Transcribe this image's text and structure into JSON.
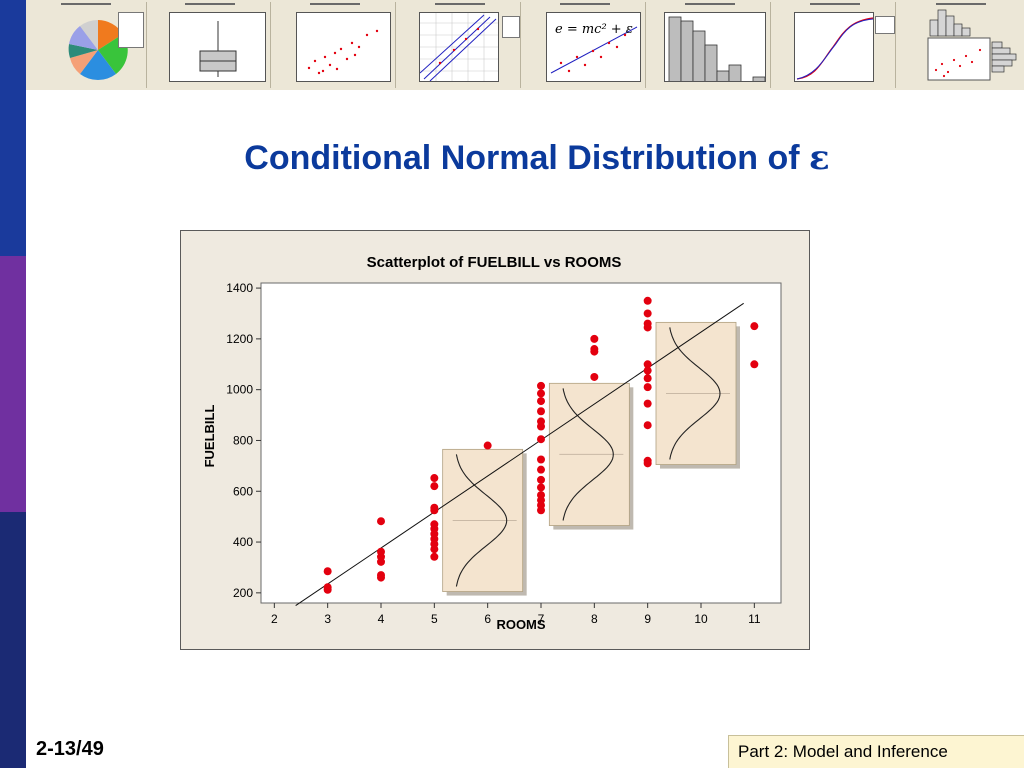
{
  "slide": {
    "title": "Conditional Normal Distribution of",
    "title_symbol": "ε",
    "page_number": "2-13/49",
    "footer_text": "Part 2: Model and Inference",
    "accent_color": "#0b3a9c",
    "sidebar_colors": [
      "#1a3a9c",
      "#7030a0",
      "#1b2a74"
    ]
  },
  "thumbnails": [
    {
      "kind": "pie"
    },
    {
      "kind": "boxplot"
    },
    {
      "kind": "scatter"
    },
    {
      "kind": "probability"
    },
    {
      "kind": "equation",
      "equation_text": "e = mc² + ε"
    },
    {
      "kind": "histogram"
    },
    {
      "kind": "cdf"
    },
    {
      "kind": "marginal"
    }
  ],
  "chart_data": {
    "type": "scatter",
    "title": "Scatterplot of FUELBILL vs ROOMS",
    "xlabel": "ROOMS",
    "ylabel": "FUELBILL",
    "xlim": [
      1.75,
      11.5
    ],
    "ylim": [
      160,
      1420
    ],
    "x_ticks": [
      2,
      3,
      4,
      5,
      6,
      7,
      8,
      9,
      10,
      11
    ],
    "y_ticks": [
      200,
      400,
      600,
      800,
      1000,
      1200,
      1400
    ],
    "grid": false,
    "point_color": "#e3000f",
    "points": [
      [
        3,
        285
      ],
      [
        3,
        222
      ],
      [
        3,
        212
      ],
      [
        4,
        482
      ],
      [
        4,
        362
      ],
      [
        4,
        342
      ],
      [
        4,
        322
      ],
      [
        4,
        270
      ],
      [
        4,
        260
      ],
      [
        5,
        652
      ],
      [
        5,
        620
      ],
      [
        5,
        535
      ],
      [
        5,
        525
      ],
      [
        5,
        470
      ],
      [
        5,
        452
      ],
      [
        5,
        432
      ],
      [
        5,
        412
      ],
      [
        5,
        392
      ],
      [
        5,
        372
      ],
      [
        5,
        342
      ],
      [
        6,
        780
      ],
      [
        7,
        1015
      ],
      [
        7,
        985
      ],
      [
        7,
        955
      ],
      [
        7,
        915
      ],
      [
        7,
        875
      ],
      [
        7,
        855
      ],
      [
        7,
        805
      ],
      [
        7,
        725
      ],
      [
        7,
        685
      ],
      [
        7,
        645
      ],
      [
        7,
        615
      ],
      [
        7,
        585
      ],
      [
        7,
        565
      ],
      [
        7,
        545
      ],
      [
        7,
        525
      ],
      [
        8,
        1200
      ],
      [
        8,
        1160
      ],
      [
        8,
        1150
      ],
      [
        8,
        1050
      ],
      [
        9,
        1350
      ],
      [
        9,
        1300
      ],
      [
        9,
        1260
      ],
      [
        9,
        1245
      ],
      [
        9,
        1100
      ],
      [
        9,
        1075
      ],
      [
        9,
        1045
      ],
      [
        9,
        1010
      ],
      [
        9,
        945
      ],
      [
        9,
        860
      ],
      [
        9,
        720
      ],
      [
        9,
        710
      ],
      [
        11,
        1250
      ],
      [
        11,
        1100
      ]
    ],
    "regression_line": {
      "x": [
        2.4,
        10.8
      ],
      "y": [
        150,
        1340
      ]
    },
    "normal_curves": [
      {
        "x": 6,
        "mean": 485
      },
      {
        "x": 8,
        "mean": 745
      },
      {
        "x": 10,
        "mean": 985
      }
    ]
  }
}
